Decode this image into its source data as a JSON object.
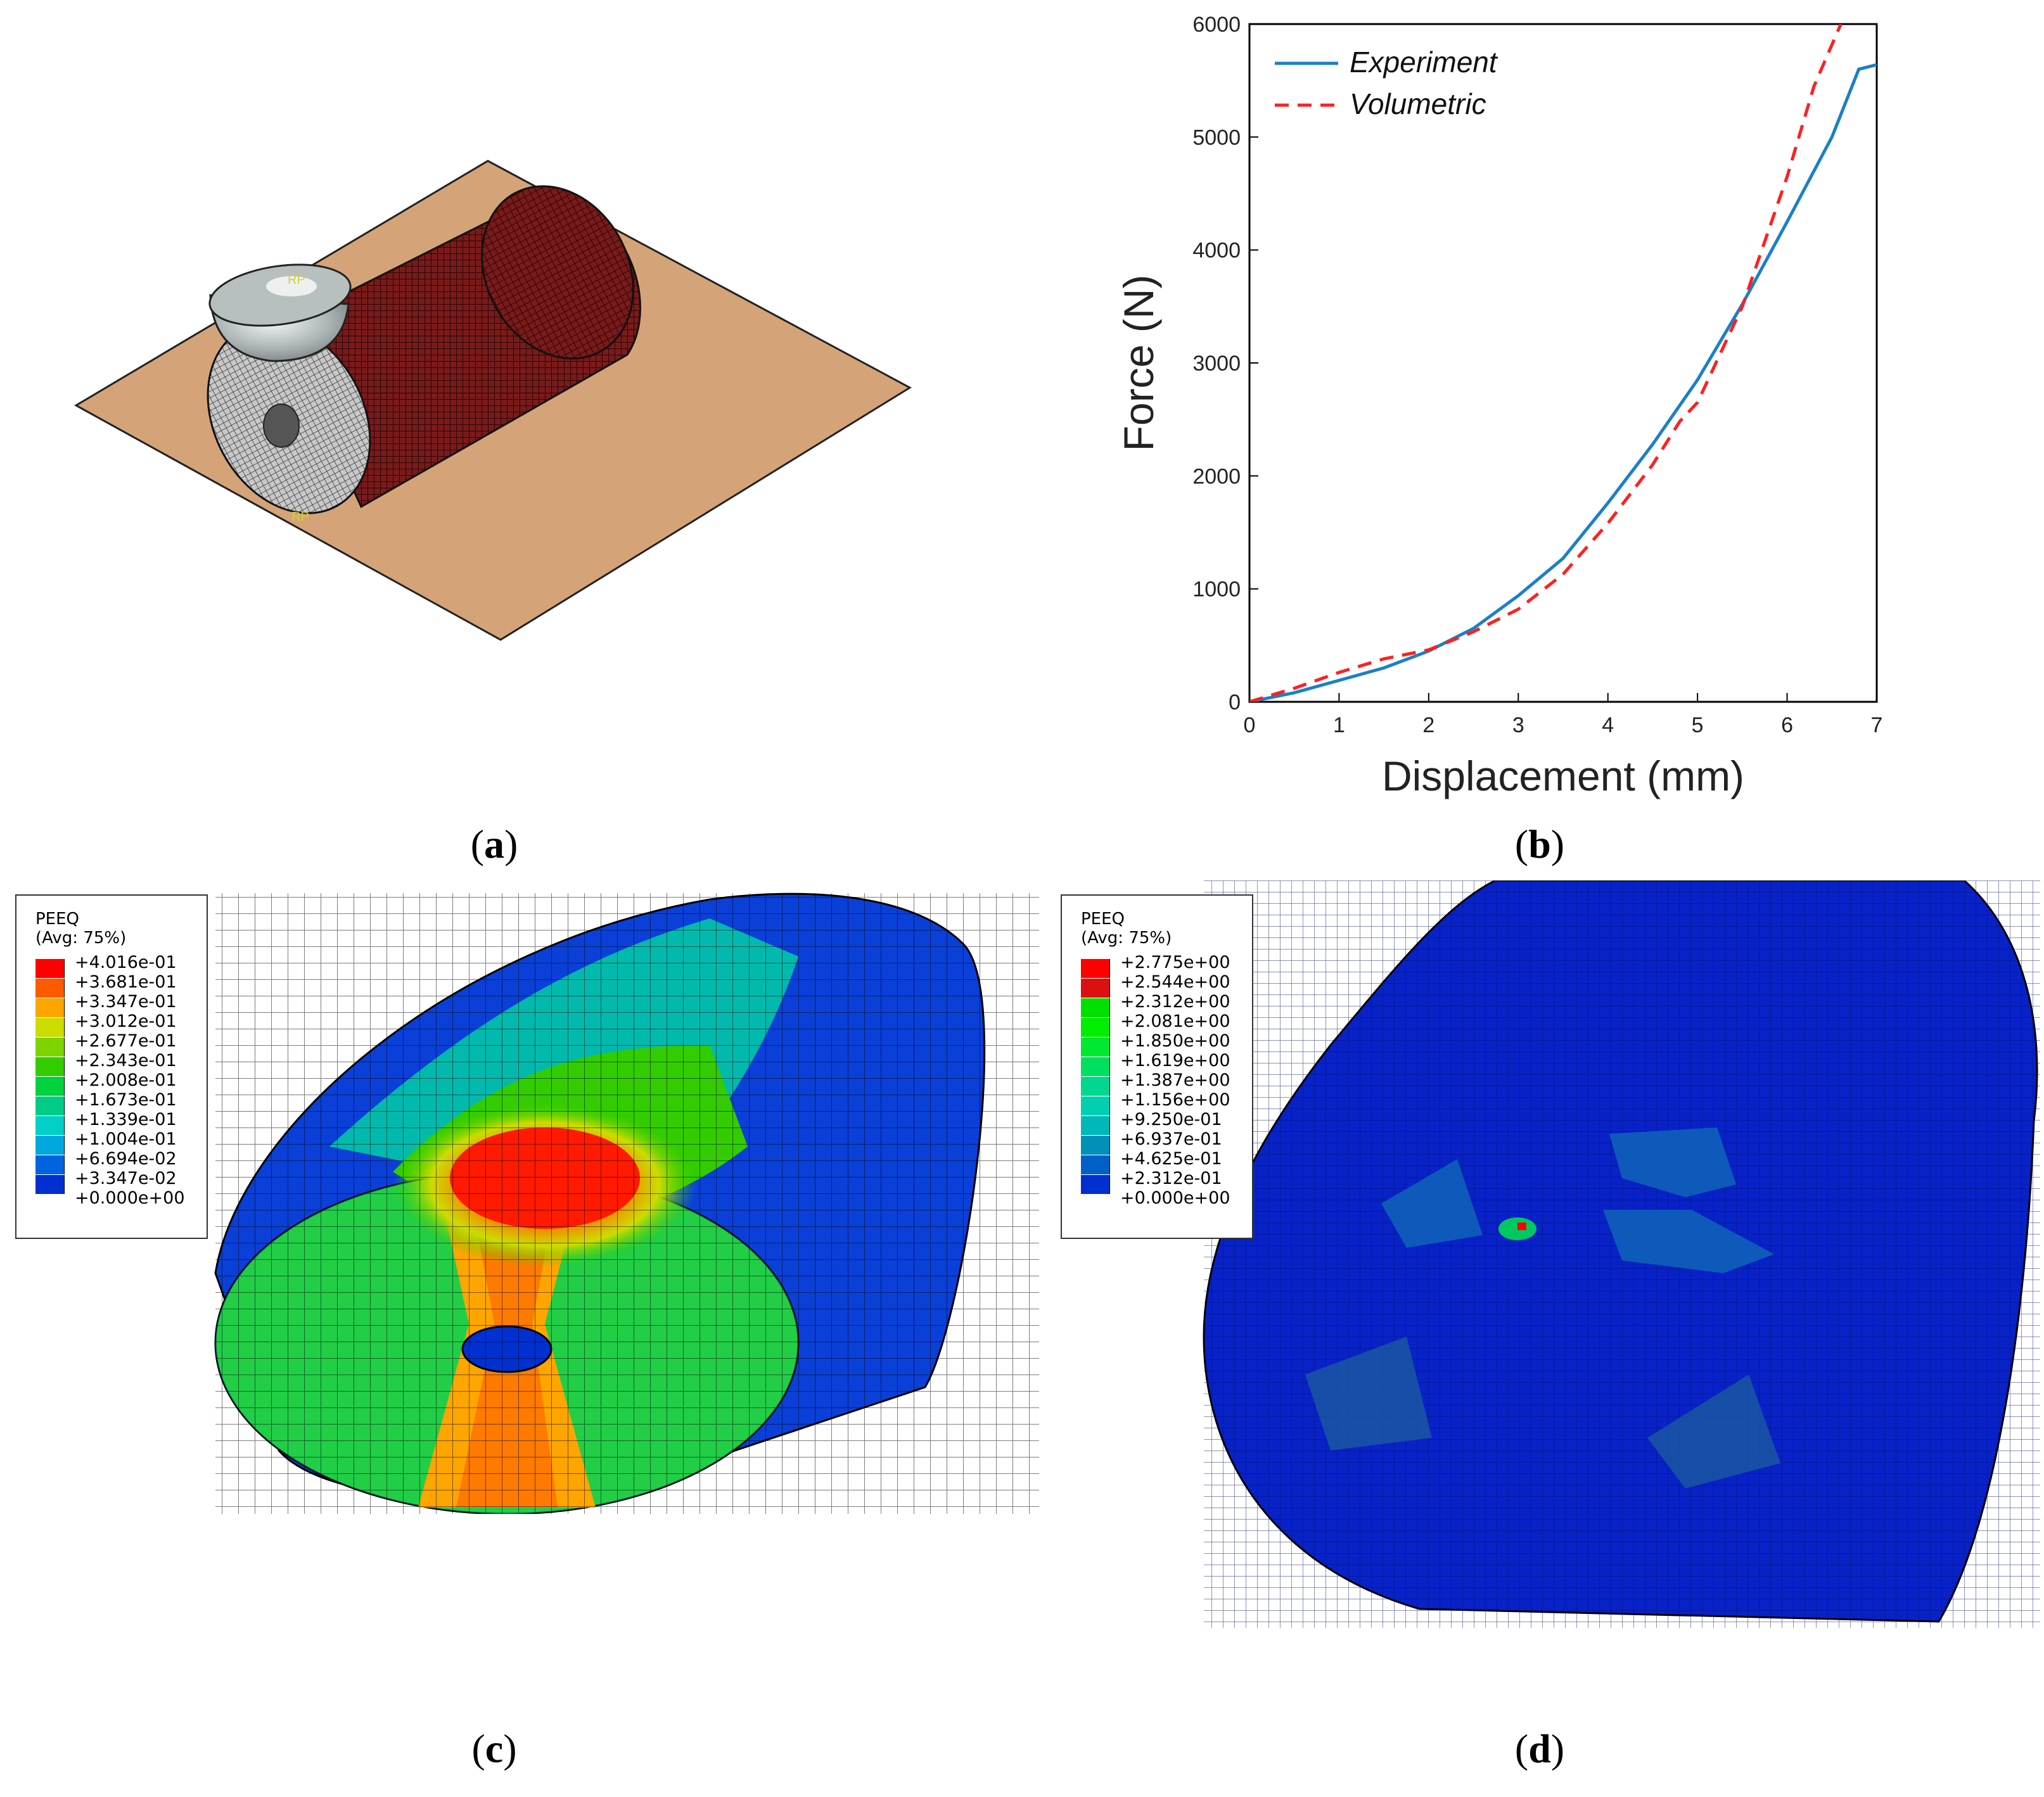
{
  "panels": {
    "a": {
      "caption": "a",
      "rp_label_top": "RP",
      "rp_label_bottom": "RP"
    },
    "b": {
      "caption": "b"
    },
    "c": {
      "caption": "c",
      "legend": {
        "title": "PEEQ",
        "subtitle": "(Avg: 75%)",
        "values": [
          "+4.016e-01",
          "+3.681e-01",
          "+3.347e-01",
          "+3.012e-01",
          "+2.677e-01",
          "+2.343e-01",
          "+2.008e-01",
          "+1.673e-01",
          "+1.339e-01",
          "+1.004e-01",
          "+6.694e-02",
          "+3.347e-02",
          "+0.000e+00"
        ],
        "colors": [
          "#ff0000",
          "#ff5a00",
          "#ffa500",
          "#cddc00",
          "#7ed400",
          "#33cc00",
          "#00d23c",
          "#00cc88",
          "#00d0c8",
          "#00a8e0",
          "#0064e0",
          "#0030d0"
        ]
      }
    },
    "d": {
      "caption": "d",
      "legend": {
        "title": "PEEQ",
        "subtitle": "(Avg: 75%)",
        "values": [
          "+2.775e+00",
          "+2.544e+00",
          "+2.312e+00",
          "+2.081e+00",
          "+1.850e+00",
          "+1.619e+00",
          "+1.387e+00",
          "+1.156e+00",
          "+9.250e-01",
          "+6.937e-01",
          "+4.625e-01",
          "+2.312e-01",
          "+0.000e+00"
        ],
        "colors": [
          "#ff0000",
          "#dd1010",
          "#00e000",
          "#00ee00",
          "#00e830",
          "#00e060",
          "#00d890",
          "#00d0b0",
          "#00b8b8",
          "#0090b8",
          "#0060c8",
          "#0030d0"
        ]
      }
    }
  },
  "chart_data": {
    "type": "line",
    "xlabel": "Displacement (mm)",
    "ylabel": "Force (N)",
    "xlim": [
      0,
      7
    ],
    "ylim": [
      0,
      6000
    ],
    "xticks": [
      0,
      1,
      2,
      3,
      4,
      5,
      6,
      7
    ],
    "yticks": [
      0,
      1000,
      2000,
      3000,
      4000,
      5000,
      6000
    ],
    "grid": false,
    "legend_position": "top-left",
    "series": [
      {
        "name": "Experiment",
        "color": "#1a80c8",
        "dash": "solid",
        "x": [
          0,
          0.5,
          1,
          1.5,
          2,
          2.5,
          3,
          3.5,
          4,
          4.5,
          5,
          5.5,
          6,
          6.5,
          6.8,
          7
        ],
        "y": [
          0,
          80,
          190,
          300,
          450,
          650,
          940,
          1270,
          1760,
          2280,
          2850,
          3520,
          4250,
          5000,
          5600,
          5640
        ]
      },
      {
        "name": "Volumetric",
        "color": "#ff2020",
        "dash": "dashed",
        "x": [
          0,
          0.5,
          1,
          1.5,
          2,
          2.5,
          3,
          3.5,
          4,
          4.5,
          4.8,
          5,
          5.5,
          6,
          6.3,
          6.6
        ],
        "y": [
          0,
          120,
          260,
          380,
          460,
          620,
          820,
          1130,
          1580,
          2100,
          2480,
          2650,
          3500,
          4650,
          5450,
          6000
        ]
      }
    ]
  }
}
